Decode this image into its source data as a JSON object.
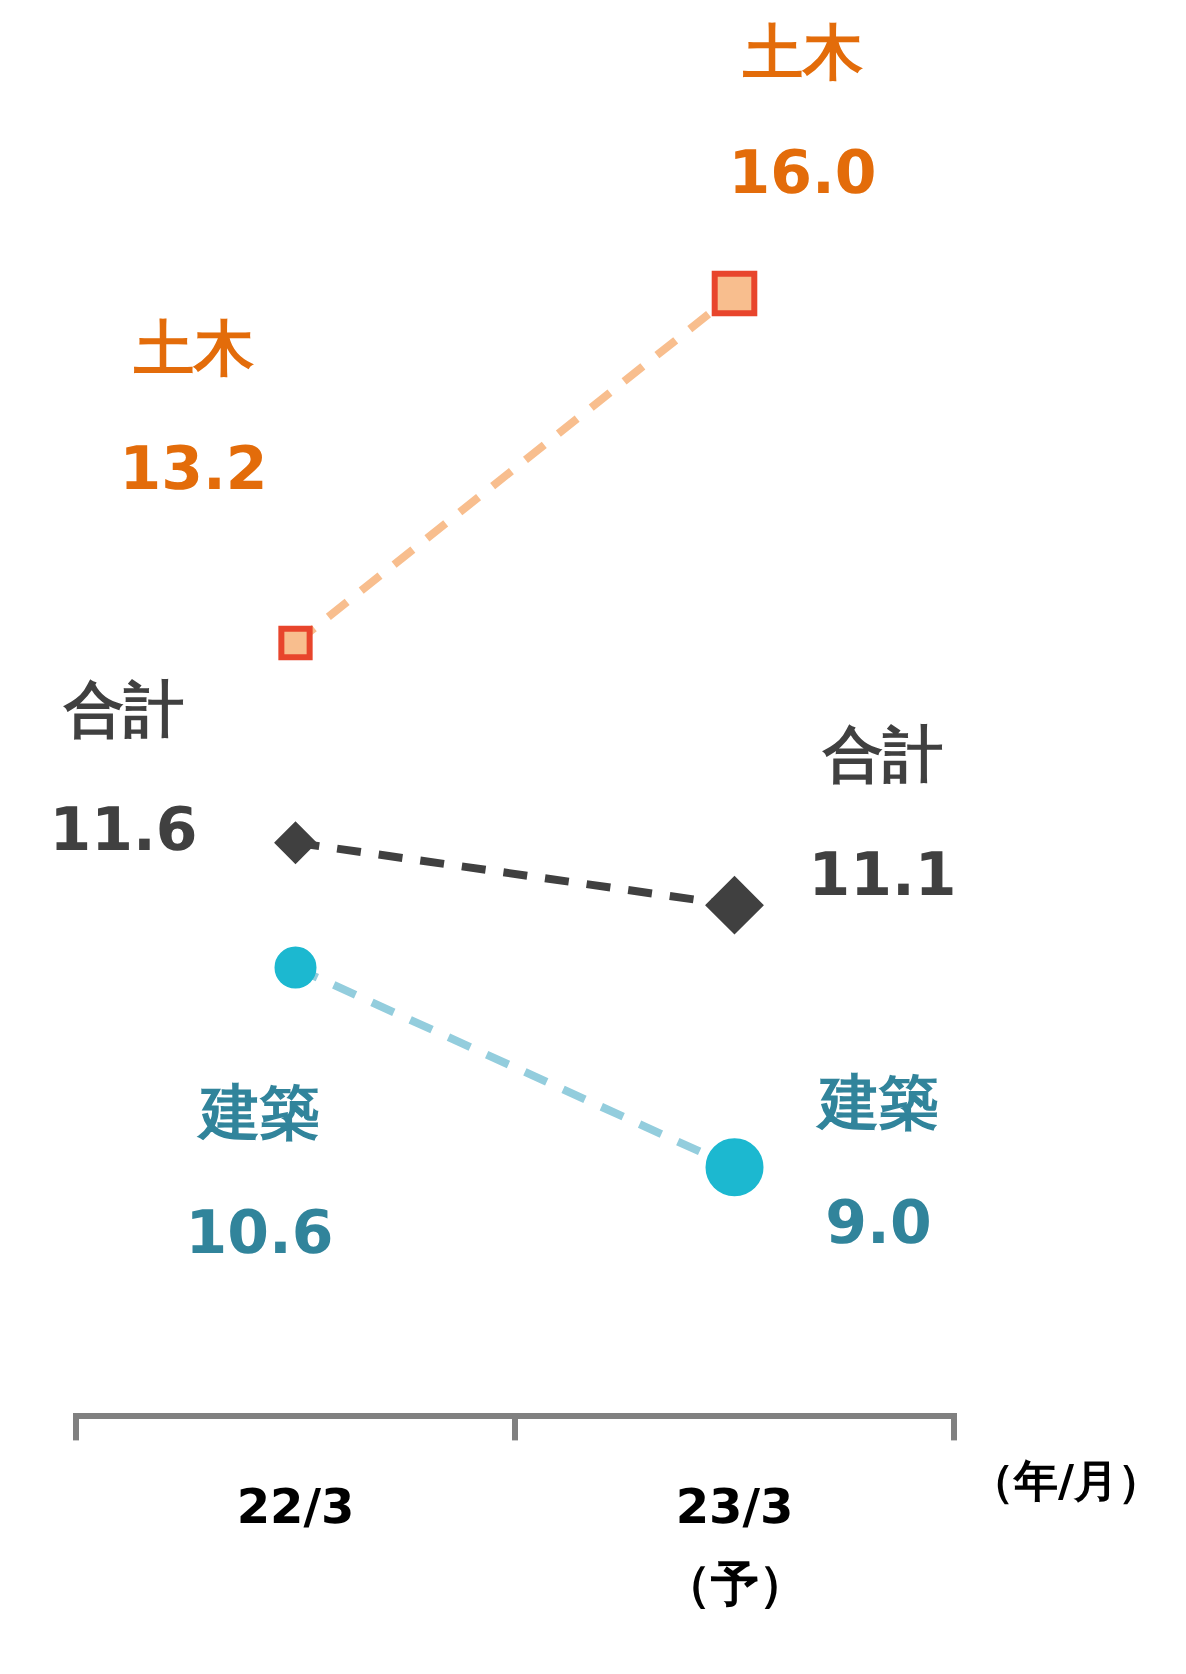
{
  "chart_data": {
    "type": "line",
    "categories": [
      "22/3",
      "23/3\n（予）"
    ],
    "xlabel": "（年/月）",
    "line_style": "dashed",
    "data_labels": true,
    "legend": false,
    "grid": false,
    "tick_labels": "x",
    "series": [
      {
        "name": "土木",
        "color": "#f8be8e",
        "marker": "square",
        "values": [
          13.2,
          16.0
        ],
        "value_labels": [
          "13.2",
          "16.0"
        ]
      },
      {
        "name": "合計",
        "color": "#404040",
        "marker": "diamond",
        "values": [
          11.6,
          11.1
        ],
        "value_labels": [
          "11.6",
          "11.1"
        ]
      },
      {
        "name": "建築",
        "color": "#1cb8d0",
        "marker": "circle",
        "values": [
          10.6,
          9.0
        ],
        "value_labels": [
          "10.6",
          "9.0"
        ]
      }
    ]
  }
}
